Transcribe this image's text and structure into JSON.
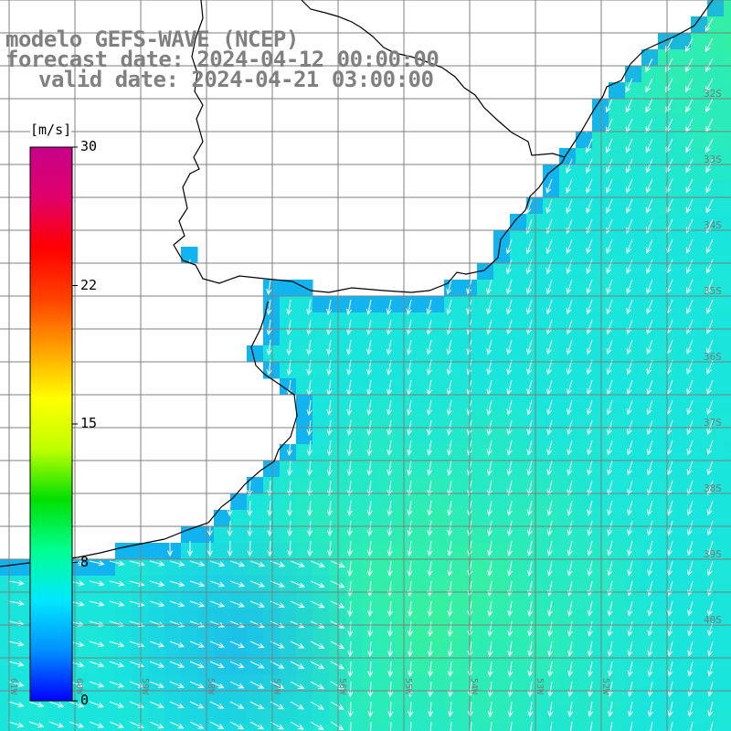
{
  "title": {
    "model": "modelo GEFS-WAVE (NCEP)",
    "forecast": "forecast date: 2024-04-12 00:00:00",
    "valid": "valid date: 2024-04-21 03:00:00"
  },
  "colorbar": {
    "units": "[m/s]",
    "min": 0,
    "max": 30,
    "ticks": [
      {
        "label": "30",
        "value": 30
      },
      {
        "label": "22",
        "value": 22.5
      },
      {
        "label": "15",
        "value": 15
      },
      {
        "label": "8",
        "value": 7.5
      },
      {
        "label": "0",
        "value": 0
      }
    ],
    "colors": [
      "#0000ff",
      "#0090ff",
      "#00e8ff",
      "#00ff90",
      "#00e000",
      "#c0ff00",
      "#ffff00",
      "#ffa000",
      "#ff4000",
      "#ff0000",
      "#e0006a",
      "#c8008a"
    ]
  },
  "field": {
    "variable": "wind speed",
    "mean_speed_ms": 9,
    "arrow_direction": "toward south-southwest",
    "colors": {
      "base": "#19e5dc",
      "strong": "#3bf296",
      "weak": "#1cb4ee",
      "coast": "#0a8cff"
    }
  },
  "latitude_labels": [
    "32S",
    "33S",
    "34S",
    "35S",
    "36S",
    "37S",
    "38S",
    "39S",
    "40S"
  ],
  "longitude_labels": [
    "61W",
    "60W",
    "59W",
    "58W",
    "57W",
    "56W",
    "55W",
    "54W",
    "53W",
    "52W"
  ],
  "colors": {
    "land": "#ffffff",
    "coastline": "#000000",
    "grid": "#7f7f7f",
    "arrows": "#ffffff",
    "title": "#808080"
  }
}
